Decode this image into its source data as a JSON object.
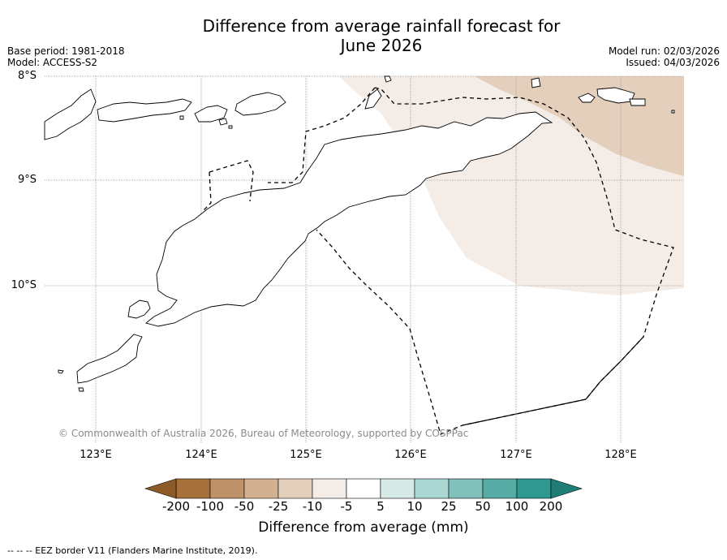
{
  "title_line1": "Difference from average rainfall forecast for",
  "title_line2": "June 2026",
  "base_period": "Base period: 1981-2018",
  "model": "Model: ACCESS-S2",
  "model_run": "Model run: 02/03/2026",
  "issued": "Issued: 04/03/2026",
  "lat_labels": [
    "8°S",
    "9°S",
    "10°S"
  ],
  "lon_labels": [
    "123°E",
    "124°E",
    "125°E",
    "126°E",
    "127°E",
    "128°E"
  ],
  "copyright": "© Commonwealth of Australia 2026, Bureau of Meteorology, supported by COSPPac",
  "colorbar": {
    "labels": [
      "-200",
      "-100",
      "-50",
      "-25",
      "-10",
      "-5",
      "5",
      "10",
      "25",
      "50",
      "100",
      "200"
    ],
    "colors": [
      "#a8703a",
      "#bf9269",
      "#d3b091",
      "#e3cfbb",
      "#f4ece6",
      "#ffffff",
      "#d6ebe8",
      "#acd8d4",
      "#80c1bb",
      "#57aba5",
      "#2f9891"
    ],
    "low_extend_color": "#8c5a26",
    "high_extend_color": "#1f7d77",
    "title": "Difference from average (mm)"
  },
  "legend": "--  --  -- EEZ border V11 (Flanders Marine Institute, 2019).",
  "region_colors": {
    "light_dry": "#f4ece6",
    "dry": "#e3cfbb"
  }
}
